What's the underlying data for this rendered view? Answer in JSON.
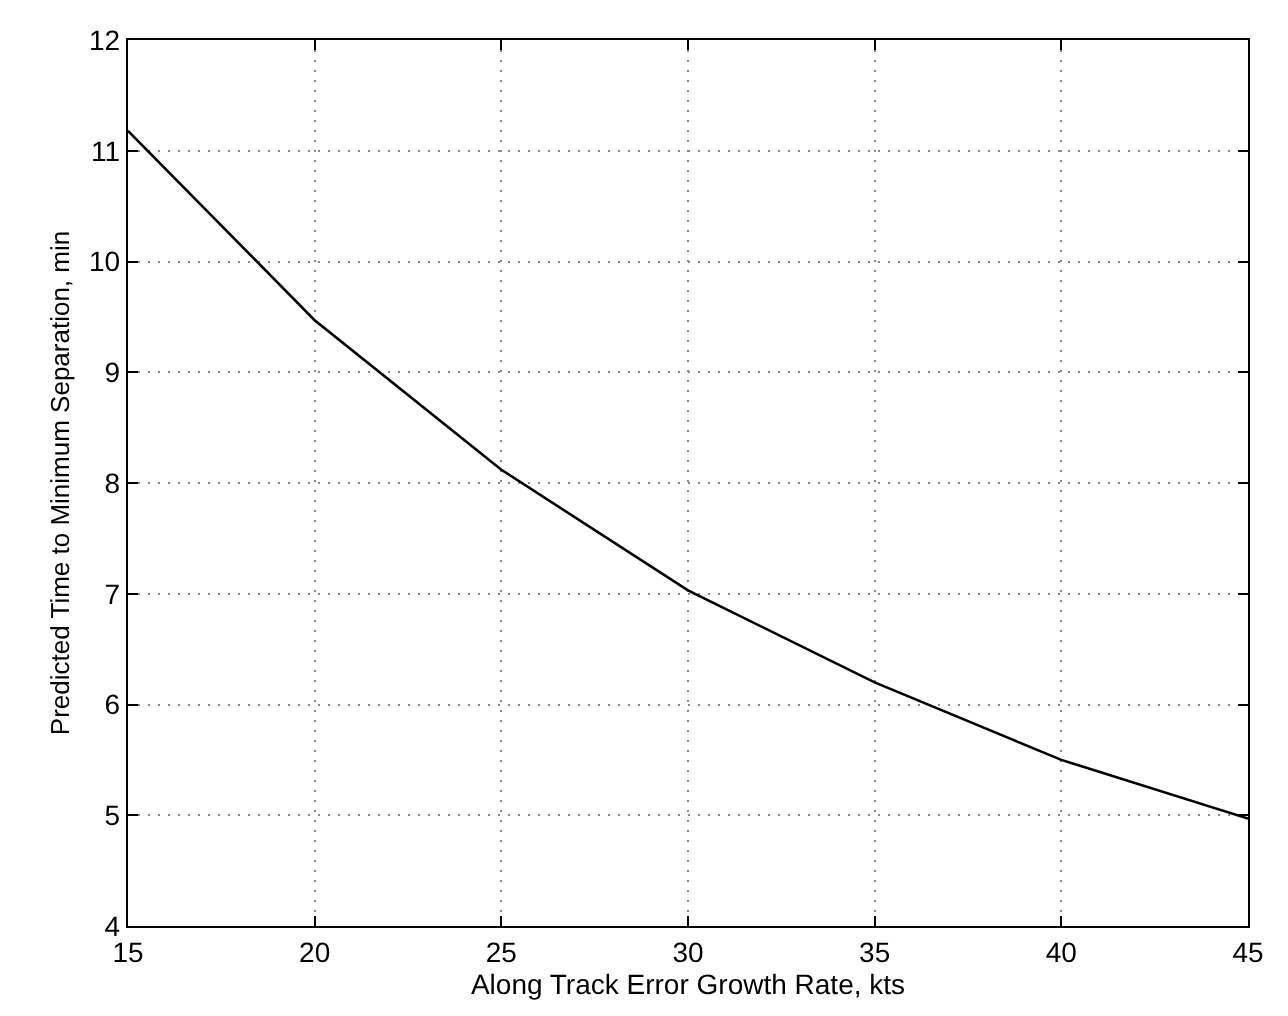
{
  "chart_data": {
    "type": "line",
    "xlabel": "Along Track Error Growth Rate, kts",
    "ylabel": "Predicted Time to Minimum Separation, min",
    "x": [
      15,
      20,
      25,
      30,
      35,
      40,
      45
    ],
    "series": [
      {
        "color": "#000000",
        "values": [
          11.18,
          9.47,
          8.12,
          7.03,
          6.2,
          5.5,
          4.97
        ]
      }
    ],
    "xlim": [
      15,
      45
    ],
    "xticks": [
      15,
      20,
      25,
      30,
      35,
      40,
      45
    ],
    "ylim": [
      4,
      12
    ],
    "yticks": [
      4,
      5,
      6,
      7,
      8,
      9,
      10,
      11,
      12
    ],
    "grid": true,
    "marker": "none",
    "line_style": "solid"
  }
}
